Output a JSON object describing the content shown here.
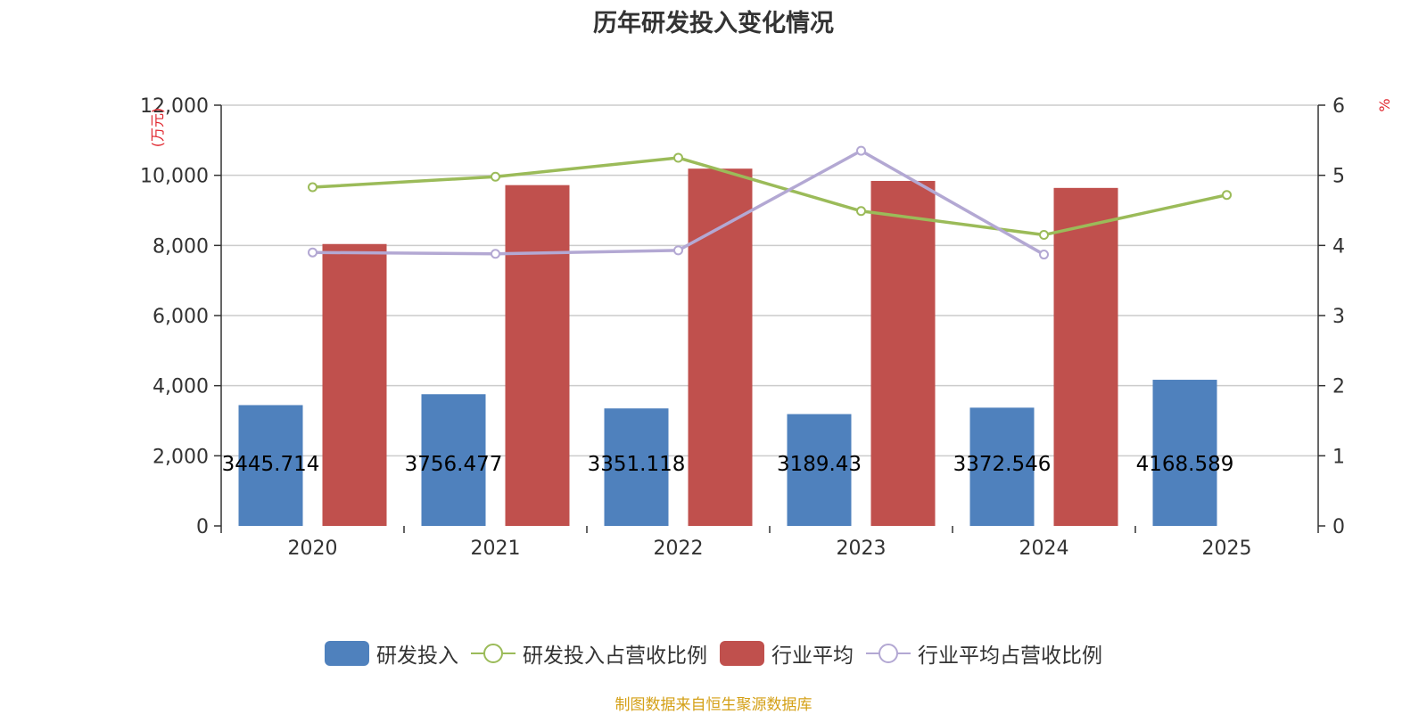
{
  "chart_data": {
    "type": "bar",
    "title": "历年研发投入变化情况",
    "categories": [
      "2020",
      "2021",
      "2022",
      "2023",
      "2024",
      "2025"
    ],
    "y_left": {
      "unit": "(万元)",
      "min": 0,
      "max": 12000,
      "ticks": [
        "0",
        "2,000",
        "4,000",
        "6,000",
        "8,000",
        "10,000",
        "12,000"
      ],
      "tick_values": [
        0,
        2000,
        4000,
        6000,
        8000,
        10000,
        12000
      ]
    },
    "y_right": {
      "unit": "%",
      "min": 0,
      "max": 6,
      "ticks": [
        "0",
        "1",
        "2",
        "3",
        "4",
        "5",
        "6"
      ],
      "tick_values": [
        0,
        1,
        2,
        3,
        4,
        5,
        6
      ]
    },
    "series": [
      {
        "name": "研发投入",
        "kind": "bar",
        "axis": "left",
        "color": "#4f81bd",
        "values": [
          3445.714,
          3756.477,
          3351.118,
          3189.43,
          3372.546,
          4168.589
        ],
        "labels": [
          "3445.714",
          "3756.477",
          "3351.118",
          "3189.43",
          "3372.546",
          "4168.589"
        ]
      },
      {
        "name": "研发投入占营收比例",
        "kind": "line",
        "axis": "right",
        "color": "#9bbb59",
        "values": [
          4.83,
          4.98,
          5.25,
          4.49,
          4.15,
          4.72
        ]
      },
      {
        "name": "行业平均",
        "kind": "bar",
        "axis": "left",
        "color": "#c0504d",
        "values": [
          8040,
          9720,
          10190,
          9840,
          9640,
          null
        ]
      },
      {
        "name": "行业平均占营收比例",
        "kind": "line",
        "axis": "right",
        "color": "#b3a8d3",
        "values": [
          3.9,
          3.88,
          3.93,
          5.35,
          3.87,
          null
        ]
      }
    ],
    "grid": true,
    "legend_position": "bottom"
  },
  "source": "制图数据来自恒生聚源数据库"
}
